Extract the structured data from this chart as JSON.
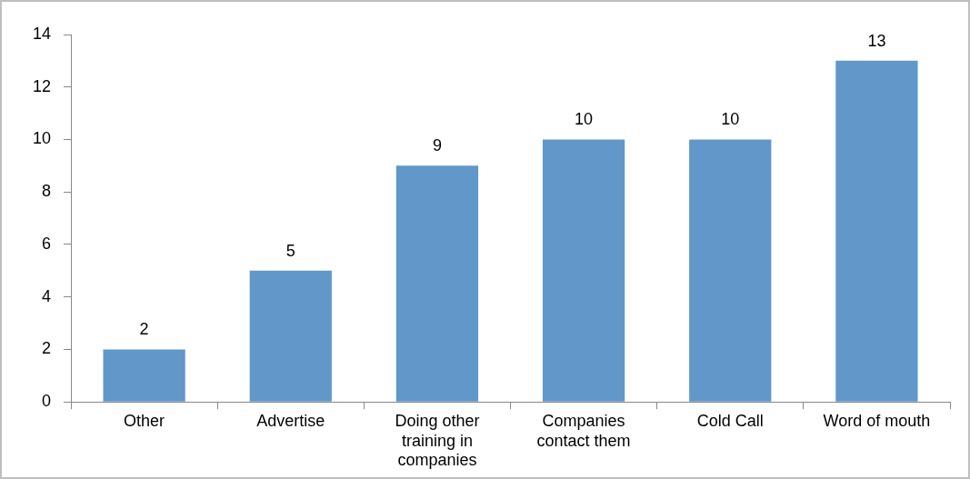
{
  "chart_data": {
    "type": "bar",
    "categories": [
      "Other",
      "Advertise",
      "Doing other training in companies",
      "Companies contact them",
      "Cold Call",
      "Word of mouth"
    ],
    "values": [
      2,
      5,
      9,
      10,
      10,
      13
    ],
    "color": "#6197c9",
    "ylim": [
      0,
      14
    ],
    "yticks": [
      0,
      2,
      4,
      6,
      8,
      10,
      12,
      14
    ],
    "grid": false,
    "legend": false,
    "data_labels": true
  }
}
